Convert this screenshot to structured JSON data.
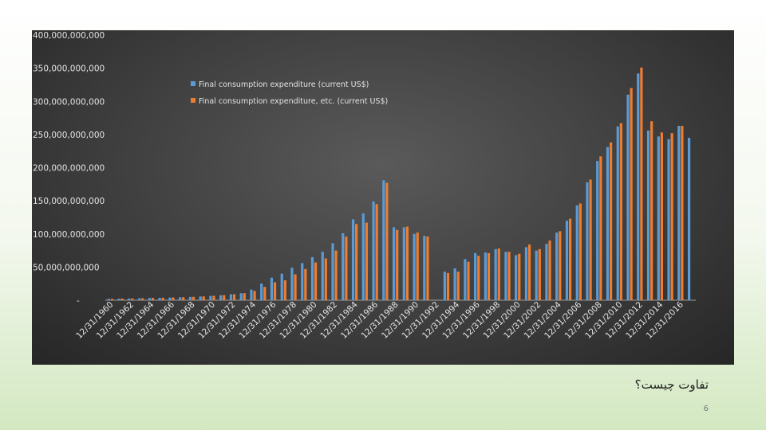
{
  "caption": "تفاوت چیست؟",
  "page_number": "6",
  "chart_data": {
    "type": "bar",
    "title": "",
    "xlabel": "",
    "ylabel": "",
    "ylim": [
      0,
      400000000000
    ],
    "y_ticks": [
      {
        "value": 400000000000,
        "label": "400,000,000,000"
      },
      {
        "value": 350000000000,
        "label": "350,000,000,000"
      },
      {
        "value": 300000000000,
        "label": "300,000,000,000"
      },
      {
        "value": 250000000000,
        "label": "250,000,000,000"
      },
      {
        "value": 200000000000,
        "label": "200,000,000,000"
      },
      {
        "value": 150000000000,
        "label": "150,000,000,000"
      },
      {
        "value": 100000000000,
        "label": "100,000,000,000"
      },
      {
        "value": 50000000000,
        "label": "50,000,000,000"
      },
      {
        "value": 0,
        "label": "-"
      }
    ],
    "grid": false,
    "legend_position": "top-center",
    "categories": [
      "12/31/1960",
      "12/31/1961",
      "12/31/1962",
      "12/31/1963",
      "12/31/1964",
      "12/31/1965",
      "12/31/1966",
      "12/31/1967",
      "12/31/1968",
      "12/31/1969",
      "12/31/1970",
      "12/31/1971",
      "12/31/1972",
      "12/31/1973",
      "12/31/1974",
      "12/31/1975",
      "12/31/1976",
      "12/31/1977",
      "12/31/1978",
      "12/31/1979",
      "12/31/1980",
      "12/31/1981",
      "12/31/1982",
      "12/31/1983",
      "12/31/1984",
      "12/31/1985",
      "12/31/1986",
      "12/31/1987",
      "12/31/1988",
      "12/31/1989",
      "12/31/1990",
      "12/31/1991",
      "12/31/1992",
      "12/31/1993",
      "12/31/1994",
      "12/31/1995",
      "12/31/1996",
      "12/31/1997",
      "12/31/1998",
      "12/31/1999",
      "12/31/2000",
      "12/31/2001",
      "12/31/2002",
      "12/31/2003",
      "12/31/2004",
      "12/31/2005",
      "12/31/2006",
      "12/31/2007",
      "12/31/2008",
      "12/31/2009",
      "12/31/2010",
      "12/31/2011",
      "12/31/2012",
      "12/31/2013",
      "12/31/2014",
      "12/31/2015",
      "12/31/2016",
      "12/31/2017"
    ],
    "visible_tick_labels": [
      "12/31/1960",
      "12/31/1962",
      "12/31/1964",
      "12/31/1966",
      "12/31/1968",
      "12/31/1970",
      "12/31/1972",
      "12/31/1974",
      "12/31/1976",
      "12/31/1978",
      "12/31/1980",
      "12/31/1982",
      "12/31/1984",
      "12/31/1986",
      "12/31/1988",
      "12/31/1990",
      "12/31/1992",
      "12/31/1994",
      "12/31/1996",
      "12/31/1998",
      "12/31/2000",
      "12/31/2002",
      "12/31/2004",
      "12/31/2006",
      "12/31/2008",
      "12/31/2010",
      "12/31/2012",
      "12/31/2014",
      "12/31/2016"
    ],
    "series": [
      {
        "name": "Final consumption expenditure (current US$)",
        "color": "#5b9bd5",
        "values": [
          2000000000,
          2300000000,
          2600000000,
          2900000000,
          3300000000,
          3600000000,
          4000000000,
          4400000000,
          5000000000,
          5600000000,
          6500000000,
          7500000000,
          9000000000,
          10500000000,
          16000000000,
          25000000000,
          34000000000,
          40000000000,
          49000000000,
          56000000000,
          65000000000,
          73000000000,
          86000000000,
          101000000000,
          122000000000,
          131000000000,
          149000000000,
          181000000000,
          110000000000,
          110000000000,
          100000000000,
          97000000000,
          null,
          43000000000,
          48000000000,
          62000000000,
          71000000000,
          72000000000,
          77000000000,
          73000000000,
          68000000000,
          80000000000,
          75000000000,
          85000000000,
          102000000000,
          120000000000,
          143000000000,
          178000000000,
          210000000000,
          231000000000,
          262000000000,
          310000000000,
          342000000000,
          256000000000,
          247000000000,
          243000000000,
          263000000000,
          245000000000
        ]
      },
      {
        "name": "Final consumption expenditure, etc. (current US$)",
        "color": "#ed7d31",
        "values": [
          2100000000,
          2400000000,
          2700000000,
          3000000000,
          3400000000,
          3700000000,
          4100000000,
          4500000000,
          5100000000,
          5700000000,
          6600000000,
          7600000000,
          9000000000,
          10600000000,
          14000000000,
          20000000000,
          27000000000,
          30000000000,
          39000000000,
          47000000000,
          57000000000,
          63000000000,
          75000000000,
          96000000000,
          115000000000,
          117000000000,
          145000000000,
          177000000000,
          106000000000,
          111000000000,
          102000000000,
          96000000000,
          null,
          41000000000,
          43000000000,
          58000000000,
          67000000000,
          71000000000,
          78000000000,
          73000000000,
          70000000000,
          84000000000,
          77000000000,
          90000000000,
          104000000000,
          123000000000,
          146000000000,
          182000000000,
          217000000000,
          238000000000,
          267000000000,
          320000000000,
          351000000000,
          270000000000,
          253000000000,
          252000000000,
          263000000000,
          null
        ]
      }
    ]
  }
}
